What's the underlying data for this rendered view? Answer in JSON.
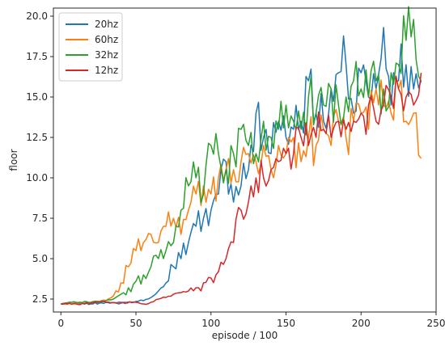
{
  "chart_data": {
    "type": "line",
    "title": "",
    "xlabel": "episode / 100",
    "ylabel": "floor",
    "xlim": [
      -5,
      250
    ],
    "ylim": [
      1.7,
      20.5
    ],
    "xticks": [
      0,
      50,
      100,
      150,
      200,
      250
    ],
    "xtick_labels": [
      "0",
      "50",
      "100",
      "150",
      "200",
      "250"
    ],
    "yticks": [
      2.5,
      5.0,
      7.5,
      10.0,
      12.5,
      15.0,
      17.5,
      20.0
    ],
    "ytick_labels": [
      "2.5",
      "5.0",
      "7.5",
      "10.0",
      "12.5",
      "15.0",
      "17.5",
      "20.0"
    ],
    "grid": false,
    "legend_position": "top-left",
    "series": [
      {
        "name": "20hz",
        "color": "#1f77b4",
        "x": [
          0,
          10,
          20,
          30,
          40,
          50,
          55,
          60,
          65,
          70,
          75,
          80,
          85,
          90,
          95,
          100,
          105,
          110,
          115,
          120,
          125,
          130,
          135,
          140,
          145,
          150,
          155,
          160,
          165,
          170,
          175,
          180,
          185,
          190,
          195,
          200,
          205,
          210,
          215,
          220,
          225,
          230,
          235,
          240
        ],
        "y": [
          2.2,
          2.25,
          2.2,
          2.3,
          2.25,
          2.35,
          2.4,
          2.6,
          3.0,
          3.5,
          4.5,
          5.0,
          6.0,
          7.0,
          7.5,
          8.0,
          9.0,
          11.0,
          8.5,
          9.5,
          10.5,
          14.0,
          12.5,
          11.5,
          13.5,
          12.5,
          13.0,
          13.5,
          16.0,
          14.0,
          13.5,
          15.5,
          16.5,
          17.0,
          14.0,
          16.5,
          15.0,
          15.5,
          19.3,
          14.5,
          16.0,
          17.0,
          15.5,
          16.0
        ]
      },
      {
        "name": "60hz",
        "color": "#ff7f0e",
        "x": [
          0,
          10,
          20,
          30,
          35,
          40,
          45,
          50,
          55,
          60,
          65,
          70,
          75,
          80,
          85,
          90,
          95,
          100,
          105,
          110,
          115,
          120,
          125,
          130,
          135,
          140,
          145,
          150,
          155,
          160,
          165,
          170,
          175,
          180,
          185,
          190,
          195,
          200,
          205,
          210,
          215,
          220,
          225,
          230,
          235,
          240
        ],
        "y": [
          2.2,
          2.25,
          2.3,
          2.4,
          2.7,
          3.5,
          4.5,
          5.5,
          6.0,
          6.5,
          6.0,
          7.0,
          7.5,
          6.5,
          8.0,
          9.0,
          9.5,
          9.0,
          10.0,
          10.5,
          10.5,
          11.0,
          11.5,
          11.0,
          12.0,
          10.5,
          12.0,
          11.5,
          12.5,
          11.0,
          12.5,
          12.0,
          13.0,
          12.0,
          13.5,
          12.5,
          13.5,
          14.0,
          13.0,
          15.5,
          14.5,
          14.0,
          15.5,
          13.5,
          14.0,
          11.2
        ]
      },
      {
        "name": "32hz",
        "color": "#2ca02c",
        "x": [
          0,
          10,
          20,
          30,
          35,
          40,
          45,
          50,
          55,
          60,
          65,
          70,
          75,
          80,
          85,
          90,
          95,
          100,
          105,
          110,
          115,
          120,
          125,
          130,
          135,
          140,
          145,
          150,
          155,
          160,
          165,
          170,
          175,
          180,
          185,
          190,
          195,
          200,
          205,
          210,
          215,
          220,
          225,
          230,
          235,
          240
        ],
        "y": [
          2.2,
          2.3,
          2.3,
          2.4,
          2.5,
          2.8,
          3.2,
          3.6,
          4.0,
          4.5,
          5.0,
          5.5,
          6.0,
          8.0,
          9.5,
          10.0,
          9.0,
          12.0,
          11.5,
          10.5,
          11.5,
          13.0,
          12.0,
          11.5,
          13.5,
          12.5,
          13.0,
          14.5,
          13.5,
          13.0,
          15.0,
          14.0,
          14.5,
          15.5,
          14.5,
          15.0,
          16.0,
          15.5,
          15.0,
          16.0,
          15.5,
          16.5,
          17.0,
          18.5,
          19.8,
          16.0
        ]
      },
      {
        "name": "12hz",
        "color": "#d62728",
        "x": [
          0,
          10,
          20,
          30,
          40,
          50,
          55,
          60,
          65,
          70,
          75,
          80,
          85,
          90,
          95,
          100,
          105,
          110,
          115,
          120,
          125,
          130,
          135,
          140,
          145,
          150,
          155,
          160,
          165,
          170,
          175,
          180,
          185,
          190,
          195,
          200,
          205,
          210,
          215,
          220,
          225,
          230,
          235,
          240
        ],
        "y": [
          2.2,
          2.2,
          2.25,
          2.3,
          2.3,
          2.3,
          2.2,
          2.3,
          2.5,
          2.6,
          2.8,
          2.9,
          3.0,
          3.2,
          3.5,
          3.8,
          4.2,
          5.0,
          6.0,
          8.0,
          8.5,
          10.0,
          10.0,
          10.5,
          11.0,
          11.5,
          11.5,
          12.5,
          12.0,
          12.5,
          13.0,
          12.5,
          13.5,
          13.0,
          13.5,
          14.0,
          14.5,
          13.5,
          14.5,
          15.0,
          15.5,
          15.0,
          14.5,
          16.5
        ]
      }
    ]
  }
}
